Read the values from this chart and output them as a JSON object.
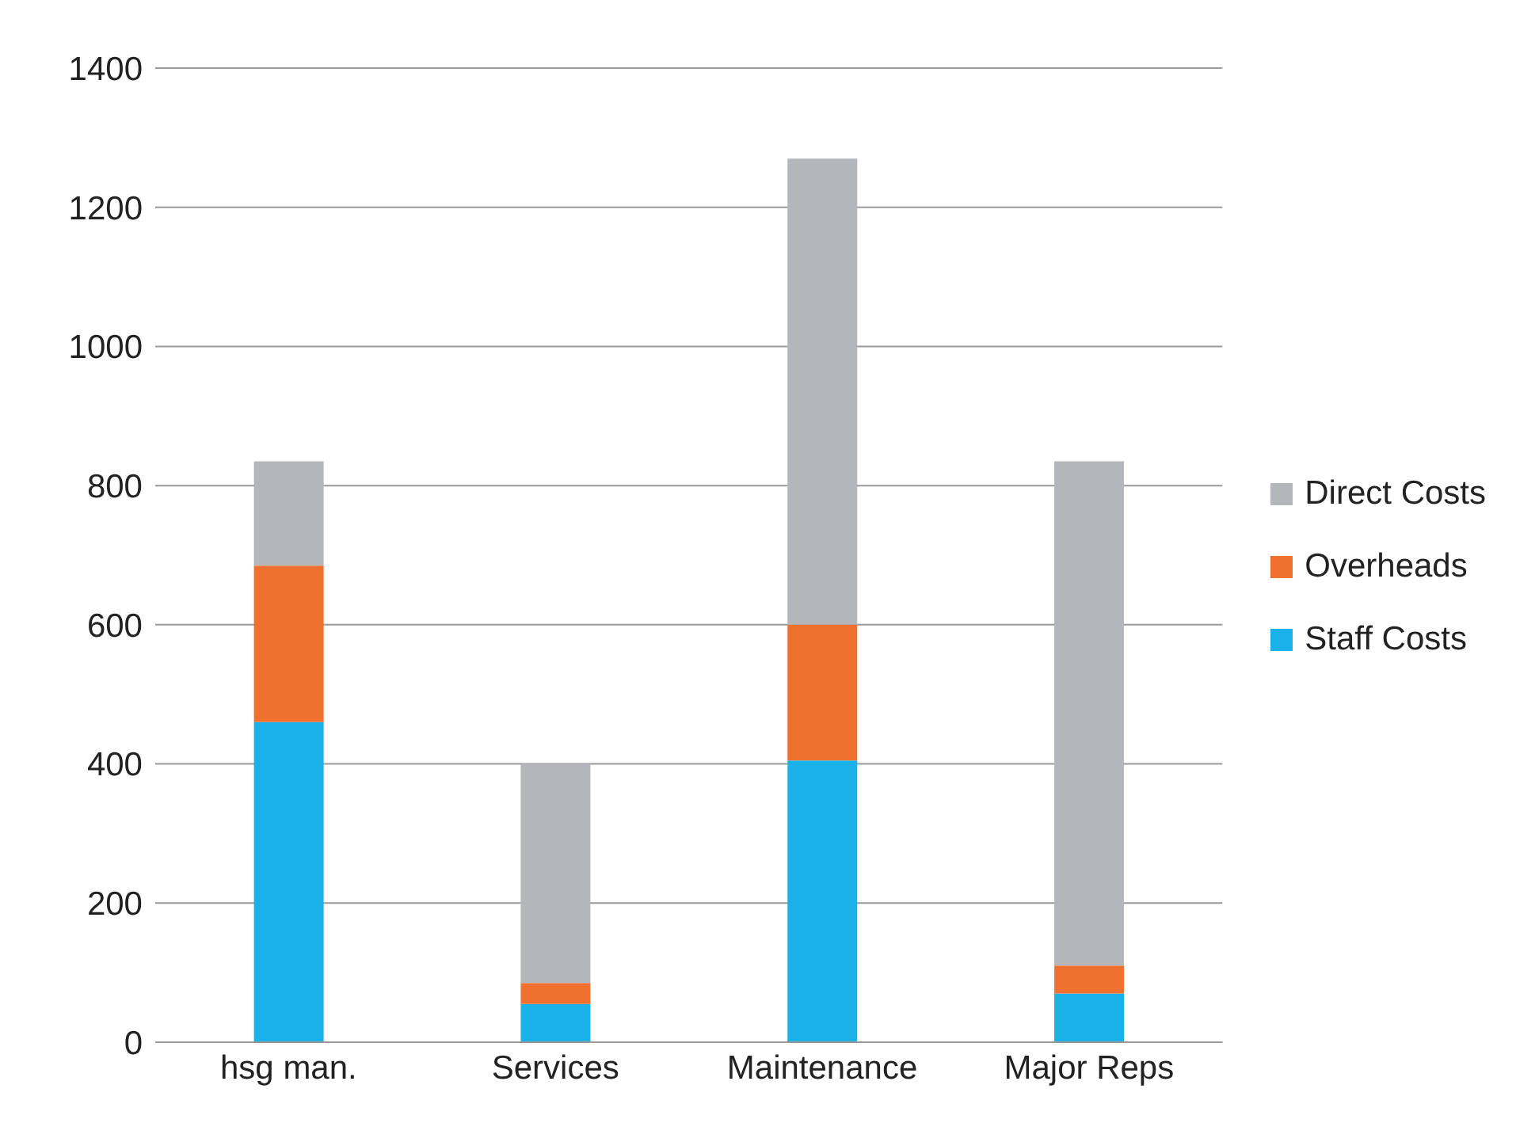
{
  "chart_data": {
    "type": "bar",
    "stacked": true,
    "categories": [
      "hsg man.",
      "Services",
      "Maintenance",
      "Major Reps"
    ],
    "series": [
      {
        "name": "Staff Costs",
        "color": "#1ab0e8",
        "values": [
          460,
          55,
          405,
          70
        ]
      },
      {
        "name": "Overheads",
        "color": "#f07030",
        "values": [
          225,
          30,
          195,
          40
        ]
      },
      {
        "name": "Direct Costs",
        "color": "#b4b6ba",
        "values": [
          150,
          315,
          670,
          725
        ]
      }
    ],
    "ylim": [
      0,
      1400
    ],
    "yticks": [
      0,
      200,
      400,
      600,
      800,
      1000,
      1200,
      1400
    ],
    "grid": "y",
    "legend": "right"
  }
}
